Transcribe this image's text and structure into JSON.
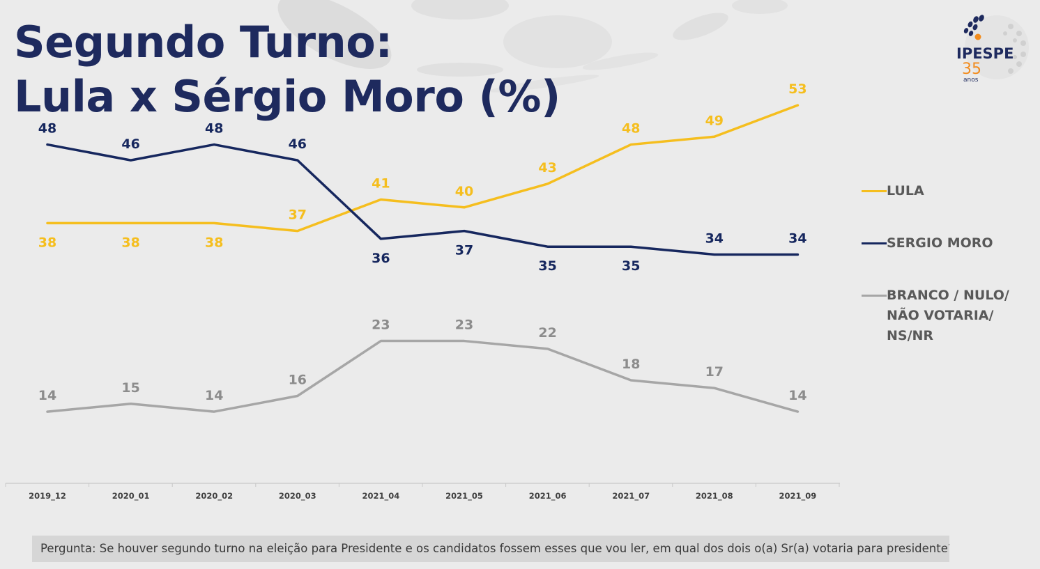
{
  "title": {
    "line1": "Segundo Turno:",
    "line2": "Lula x Sérgio Moro (%)"
  },
  "logo": {
    "brand": "IPESPE",
    "years": "35",
    "years_label": "anos"
  },
  "colors": {
    "title": "#1e2a5e",
    "lula": "#f5be1e",
    "moro": "#16275e",
    "branco": "#a6a6a6",
    "axis_text": "#404040",
    "legend_text": "#595959"
  },
  "chart_data": {
    "type": "line",
    "categories": [
      "2019_12",
      "2020_01",
      "2020_02",
      "2020_03",
      "2021_04",
      "2021_05",
      "2021_06",
      "2021_07",
      "2021_08",
      "2021_09"
    ],
    "ylim": [
      0,
      60
    ],
    "grid": false,
    "legend_position": "right",
    "xlabel": "",
    "ylabel": "",
    "series": [
      {
        "name": "LULA",
        "key": "lula",
        "values": [
          38,
          38,
          38,
          37,
          41,
          40,
          43,
          48,
          49,
          53
        ],
        "label_pos": [
          "below",
          "below",
          "below",
          "above",
          "above",
          "above",
          "above",
          "above",
          "above",
          "above"
        ]
      },
      {
        "name": "SERGIO MORO",
        "key": "moro",
        "values": [
          48,
          46,
          48,
          46,
          36,
          37,
          35,
          35,
          34,
          34
        ],
        "label_pos": [
          "above",
          "above",
          "above",
          "above",
          "below",
          "below",
          "below",
          "below",
          "above",
          "above"
        ]
      },
      {
        "name": "BRANCO / NULO/ NÃO VOTARIA/ NS/NR",
        "key": "branco",
        "values": [
          14,
          15,
          14,
          16,
          23,
          23,
          22,
          18,
          17,
          14
        ],
        "label_pos": [
          "above",
          "above",
          "above",
          "above",
          "above",
          "above",
          "above",
          "above",
          "above",
          "above"
        ]
      }
    ]
  },
  "legend": {
    "items": [
      {
        "lines": [
          "LULA"
        ]
      },
      {
        "lines": [
          "SERGIO MORO"
        ]
      },
      {
        "lines": [
          "BRANCO / NULO/",
          "NÃO VOTARIA/",
          "NS/NR"
        ]
      }
    ]
  },
  "footer": {
    "question": "Pergunta:  Se houver segundo turno na eleição para Presidente e os candidatos fossem esses que vou ler, em qual dos dois o(a) Sr(a) votaria para presidente?"
  }
}
